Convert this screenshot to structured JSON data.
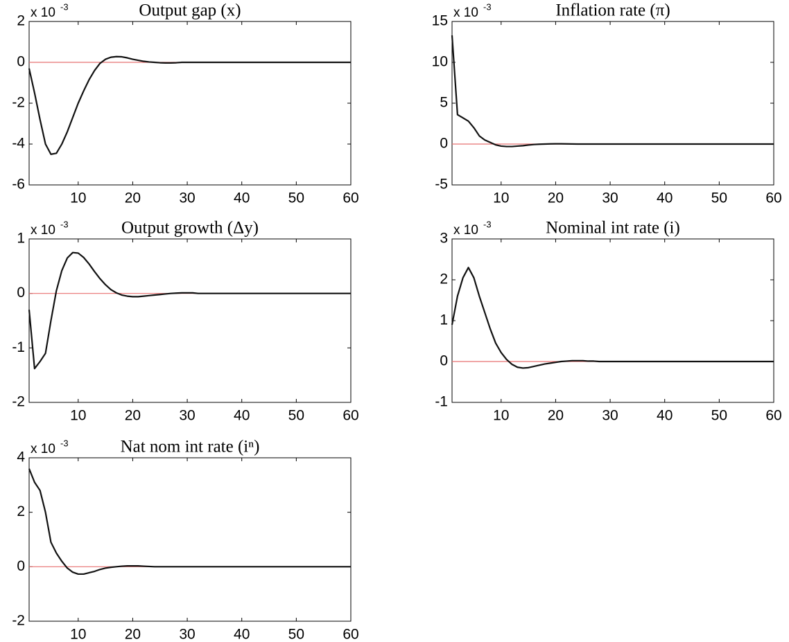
{
  "chart_data": [
    {
      "type": "line",
      "title": "Output gap (x)",
      "y_multiplier": "x 10",
      "y_exponent": "-3",
      "x": [
        1,
        2,
        3,
        4,
        5,
        6,
        7,
        8,
        9,
        10,
        11,
        12,
        13,
        14,
        15,
        16,
        17,
        18,
        19,
        20,
        21,
        22,
        23,
        24,
        25,
        26,
        27,
        28,
        29,
        30,
        31,
        32,
        33,
        34,
        35,
        36,
        37,
        38,
        39,
        40,
        41,
        42,
        43,
        44,
        45,
        46,
        47,
        48,
        49,
        50,
        51,
        52,
        53,
        54,
        55,
        56,
        57,
        58,
        59,
        60
      ],
      "values": [
        -0.3,
        -1.5,
        -2.8,
        -4.0,
        -4.5,
        -4.45,
        -4.0,
        -3.4,
        -2.7,
        -2.0,
        -1.4,
        -0.85,
        -0.4,
        -0.05,
        0.15,
        0.25,
        0.28,
        0.27,
        0.22,
        0.15,
        0.1,
        0.05,
        0.02,
        0,
        -0.02,
        -0.03,
        -0.03,
        -0.02,
        0,
        0,
        0,
        0,
        0,
        0,
        0,
        0,
        0,
        0,
        0,
        0,
        0,
        0,
        0,
        0,
        0,
        0,
        0,
        0,
        0,
        0,
        0,
        0,
        0,
        0,
        0,
        0,
        0,
        0,
        0,
        0
      ],
      "color": "#111111",
      "hline": 0,
      "hline_color": "#e87070",
      "xlim": [
        1,
        60
      ],
      "xticks": [
        10,
        20,
        30,
        40,
        50,
        60
      ],
      "ylim": [
        -6,
        2
      ],
      "yticks": [
        -6,
        -4,
        -2,
        0,
        2
      ]
    },
    {
      "type": "line",
      "title": "Inflation rate (π)",
      "y_multiplier": "x 10",
      "y_exponent": "-3",
      "x": [
        1,
        2,
        3,
        4,
        5,
        6,
        7,
        8,
        9,
        10,
        11,
        12,
        13,
        14,
        15,
        16,
        17,
        18,
        19,
        20,
        21,
        22,
        23,
        24,
        25,
        26,
        27,
        28,
        29,
        30,
        31,
        32,
        33,
        34,
        35,
        36,
        37,
        38,
        39,
        40,
        41,
        42,
        43,
        44,
        45,
        46,
        47,
        48,
        49,
        50,
        51,
        52,
        53,
        54,
        55,
        56,
        57,
        58,
        59,
        60
      ],
      "values": [
        13.3,
        3.6,
        3.2,
        2.8,
        2.0,
        1.0,
        0.5,
        0.2,
        -0.1,
        -0.25,
        -0.3,
        -0.3,
        -0.25,
        -0.2,
        -0.12,
        -0.06,
        -0.02,
        0,
        0.02,
        0.03,
        0.03,
        0.02,
        0.01,
        0,
        0,
        0,
        0,
        0,
        0,
        0,
        0,
        0,
        0,
        0,
        0,
        0,
        0,
        0,
        0,
        0,
        0,
        0,
        0,
        0,
        0,
        0,
        0,
        0,
        0,
        0,
        0,
        0,
        0,
        0,
        0,
        0,
        0,
        0,
        0,
        0
      ],
      "color": "#111111",
      "hline": 0,
      "hline_color": "#e87070",
      "xlim": [
        1,
        60
      ],
      "xticks": [
        10,
        20,
        30,
        40,
        50,
        60
      ],
      "ylim": [
        -5,
        15
      ],
      "yticks": [
        -5,
        0,
        5,
        10,
        15
      ]
    },
    {
      "type": "line",
      "title": "Output growth (Δy)",
      "y_multiplier": "x 10",
      "y_exponent": "-3",
      "x": [
        1,
        2,
        3,
        4,
        5,
        6,
        7,
        8,
        9,
        10,
        11,
        12,
        13,
        14,
        15,
        16,
        17,
        18,
        19,
        20,
        21,
        22,
        23,
        24,
        25,
        26,
        27,
        28,
        29,
        30,
        31,
        32,
        33,
        34,
        35,
        36,
        37,
        38,
        39,
        40,
        41,
        42,
        43,
        44,
        45,
        46,
        47,
        48,
        49,
        50,
        51,
        52,
        53,
        54,
        55,
        56,
        57,
        58,
        59,
        60
      ],
      "values": [
        -0.3,
        -1.38,
        -1.25,
        -1.1,
        -0.5,
        0.05,
        0.42,
        0.65,
        0.75,
        0.74,
        0.66,
        0.54,
        0.4,
        0.27,
        0.16,
        0.07,
        0.01,
        -0.03,
        -0.05,
        -0.06,
        -0.06,
        -0.05,
        -0.04,
        -0.03,
        -0.02,
        -0.01,
        0,
        0.005,
        0.01,
        0.01,
        0.01,
        0,
        0,
        0,
        0,
        0,
        0,
        0,
        0,
        0,
        0,
        0,
        0,
        0,
        0,
        0,
        0,
        0,
        0,
        0,
        0,
        0,
        0,
        0,
        0,
        0,
        0,
        0,
        0,
        0
      ],
      "color": "#111111",
      "hline": 0,
      "hline_color": "#e87070",
      "xlim": [
        1,
        60
      ],
      "xticks": [
        10,
        20,
        30,
        40,
        50,
        60
      ],
      "ylim": [
        -2,
        1
      ],
      "yticks": [
        -2,
        -1,
        0,
        1
      ]
    },
    {
      "type": "line",
      "title": "Nominal int rate (i)",
      "y_multiplier": "x 10",
      "y_exponent": "-3",
      "x": [
        1,
        2,
        3,
        4,
        5,
        6,
        7,
        8,
        9,
        10,
        11,
        12,
        13,
        14,
        15,
        16,
        17,
        18,
        19,
        20,
        21,
        22,
        23,
        24,
        25,
        26,
        27,
        28,
        29,
        30,
        31,
        32,
        33,
        34,
        35,
        36,
        37,
        38,
        39,
        40,
        41,
        42,
        43,
        44,
        45,
        46,
        47,
        48,
        49,
        50,
        51,
        52,
        53,
        54,
        55,
        56,
        57,
        58,
        59,
        60
      ],
      "values": [
        0.9,
        1.6,
        2.05,
        2.3,
        2.05,
        1.6,
        1.2,
        0.8,
        0.45,
        0.22,
        0.05,
        -0.07,
        -0.14,
        -0.16,
        -0.15,
        -0.12,
        -0.09,
        -0.06,
        -0.04,
        -0.02,
        0,
        0.01,
        0.02,
        0.02,
        0.02,
        0.01,
        0.01,
        0,
        0,
        0,
        0,
        0,
        0,
        0,
        0,
        0,
        0,
        0,
        0,
        0,
        0,
        0,
        0,
        0,
        0,
        0,
        0,
        0,
        0,
        0,
        0,
        0,
        0,
        0,
        0,
        0,
        0,
        0,
        0,
        0
      ],
      "color": "#111111",
      "hline": 0,
      "hline_color": "#e87070",
      "xlim": [
        1,
        60
      ],
      "xticks": [
        10,
        20,
        30,
        40,
        50,
        60
      ],
      "ylim": [
        -1,
        3
      ],
      "yticks": [
        -1,
        0,
        1,
        2,
        3
      ]
    },
    {
      "type": "line",
      "title": "Nat nom int rate (iⁿ)",
      "y_multiplier": "x 10",
      "y_exponent": "-3",
      "x": [
        1,
        2,
        3,
        4,
        5,
        6,
        7,
        8,
        9,
        10,
        11,
        12,
        13,
        14,
        15,
        16,
        17,
        18,
        19,
        20,
        21,
        22,
        23,
        24,
        25,
        26,
        27,
        28,
        29,
        30,
        31,
        32,
        33,
        34,
        35,
        36,
        37,
        38,
        39,
        40,
        41,
        42,
        43,
        44,
        45,
        46,
        47,
        48,
        49,
        50,
        51,
        52,
        53,
        54,
        55,
        56,
        57,
        58,
        59,
        60
      ],
      "values": [
        3.6,
        3.1,
        2.8,
        2.0,
        0.9,
        0.5,
        0.2,
        -0.05,
        -0.2,
        -0.27,
        -0.27,
        -0.22,
        -0.17,
        -0.1,
        -0.05,
        -0.02,
        0,
        0.02,
        0.03,
        0.03,
        0.03,
        0.02,
        0.01,
        0,
        0,
        0,
        0,
        0,
        0,
        0,
        0,
        0,
        0,
        0,
        0,
        0,
        0,
        0,
        0,
        0,
        0,
        0,
        0,
        0,
        0,
        0,
        0,
        0,
        0,
        0,
        0,
        0,
        0,
        0,
        0,
        0,
        0,
        0,
        0,
        0
      ],
      "color": "#111111",
      "hline": 0,
      "hline_color": "#e87070",
      "xlim": [
        1,
        60
      ],
      "xticks": [
        10,
        20,
        30,
        40,
        50,
        60
      ],
      "ylim": [
        -2,
        4
      ],
      "yticks": [
        -2,
        0,
        2,
        4
      ]
    }
  ]
}
